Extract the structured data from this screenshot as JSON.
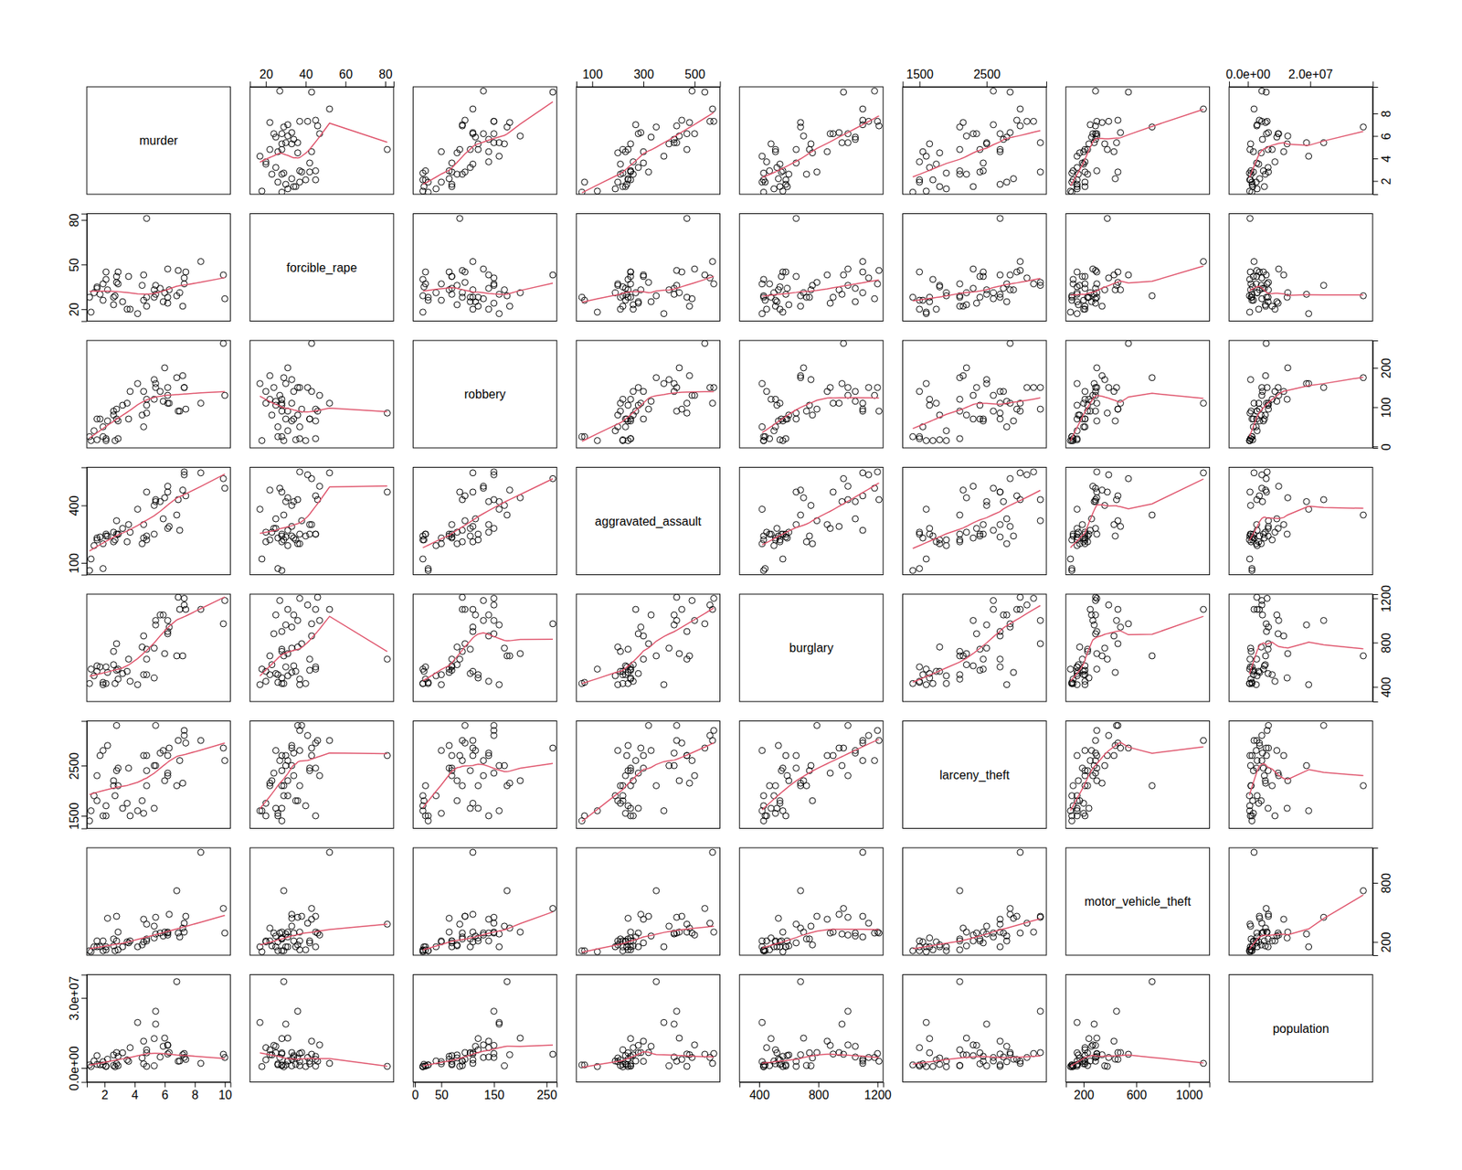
{
  "chart_data": {
    "type": "scatter_matrix",
    "marker": "circle",
    "color": "#DF536B",
    "variables": [
      {
        "name": "murder",
        "values": [
          5.7,
          4.8,
          6.3,
          6.9,
          6.8,
          2.9,
          3.5,
          5.3,
          5.4,
          6.2,
          1.7,
          1.5,
          6.0,
          4.8,
          1.3,
          3.6,
          4.5,
          10.0,
          1.9,
          7.2,
          3.2,
          6.2,
          1.5,
          7.0,
          6.2,
          2.9,
          2.8,
          9.9,
          1.0,
          3.7,
          8.4,
          4.2,
          5.9,
          2.1,
          4.6,
          7.4,
          2.2,
          5.3,
          2.6,
          7.3,
          2.1,
          7.3,
          5.4,
          1.9,
          1.1,
          4.8,
          2.8,
          4.6,
          2.6,
          2.7
        ],
        "xlim": [
          0.82,
          10.37
        ],
        "ylim": [
          0.82,
          10.37
        ],
        "xticks": [
          2,
          4,
          6,
          8,
          10
        ],
        "yticks": [
          2,
          4,
          6,
          8
        ]
      },
      {
        "name": "forcible_rape",
        "values": [
          34,
          81,
          33,
          46,
          29,
          45,
          20,
          33,
          30,
          24,
          30,
          35,
          31,
          28,
          31,
          42,
          36,
          27,
          26,
          22,
          25,
          47,
          34,
          31,
          28,
          37,
          42,
          43,
          28,
          20,
          52,
          17,
          25,
          40,
          43,
          45,
          33,
          28,
          28,
          41,
          45,
          37,
          36,
          37,
          18,
          22,
          38,
          26,
          23,
          29
        ],
        "xlim": [
          12,
          84.2
        ],
        "ylim": [
          12,
          84.2
        ],
        "xticks": [
          20,
          40,
          60,
          80
        ],
        "yticks": [
          20,
          50,
          80
        ]
      },
      {
        "name": "robbery",
        "values": [
          140,
          85,
          110,
          90,
          175,
          65,
          110,
          170,
          160,
          150,
          70,
          17,
          200,
          105,
          40,
          70,
          80,
          130,
          25,
          180,
          105,
          130,
          70,
          90,
          110,
          20,
          70,
          262,
          25,
          140,
          110,
          160,
          115,
          15,
          140,
          95,
          65,
          120,
          90,
          150,
          20,
          150,
          150,
          50,
          15,
          120,
          95,
          50,
          80,
          15
        ],
        "xlim": [
          -3.5,
          269.5
        ],
        "ylim": [
          -3.5,
          269.5
        ],
        "xticks": [
          0,
          50,
          150,
          250
        ],
        "yticks": [
          0,
          100,
          200
        ]
      },
      {
        "name": "aggravated_assault",
        "values": [
          420,
          470,
          290,
          430,
          350,
          250,
          210,
          400,
          420,
          280,
          235,
          220,
          440,
          240,
          190,
          300,
          200,
          490,
          70,
          480,
          280,
          500,
          230,
          270,
          470,
          250,
          250,
          540,
          60,
          260,
          570,
          380,
          330,
          240,
          300,
          450,
          240,
          250,
          210,
          560,
          250,
          575,
          430,
          200,
          120,
          220,
          320,
          230,
          260,
          220
        ],
        "xlim": [
          38,
          599
        ],
        "ylim": [
          38,
          599
        ],
        "xticks": [
          100,
          300,
          500
        ],
        "yticks": [
          100,
          400
        ]
      },
      {
        "name": "burglary",
        "values": [
          1050,
          650,
          940,
          1210,
          680,
          560,
          540,
          750,
          960,
          880,
          580,
          540,
          700,
          740,
          500,
          650,
          760,
          1180,
          440,
          680,
          520,
          1000,
          590,
          1100,
          900,
          470,
          550,
          970,
          430,
          450,
          1100,
          420,
          1050,
          430,
          860,
          1100,
          530,
          480,
          720,
          1140,
          580,
          1200,
          1000,
          420,
          560,
          510,
          790,
          510,
          600,
          430
        ],
        "xlim": [
          267,
          1238
        ],
        "ylim": [
          267,
          1238
        ],
        "xticks": [
          400,
          800,
          1200
        ],
        "yticks": [
          400,
          800,
          1200
        ]
      },
      {
        "name": "larceny_theft",
        "values": [
          2750,
          2700,
          2850,
          3000,
          2100,
          2450,
          1750,
          2500,
          2500,
          2350,
          2700,
          1800,
          2200,
          2400,
          1900,
          2450,
          1800,
          2600,
          1500,
          2150,
          1650,
          2300,
          2300,
          2600,
          2700,
          2100,
          2400,
          2850,
          1400,
          1500,
          3000,
          1600,
          2800,
          1700,
          2700,
          2950,
          2900,
          1650,
          2100,
          3100,
          1500,
          3200,
          3300,
          2800,
          1600,
          2100,
          3300,
          1550,
          2200,
          1900
        ],
        "xlim": [
          1250,
          3389
        ],
        "ylim": [
          1250,
          3389
        ],
        "xticks": [
          1500,
          2500
        ],
        "yticks": [
          1500,
          2500
        ]
      },
      {
        "name": "motor_vehicle_theft",
        "values": [
          290,
          380,
          480,
          290,
          720,
          300,
          200,
          360,
          280,
          290,
          150,
          150,
          300,
          230,
          150,
          190,
          170,
          290,
          110,
          340,
          150,
          270,
          210,
          250,
          300,
          120,
          210,
          540,
          110,
          210,
          1110,
          150,
          260,
          120,
          430,
          460,
          440,
          240,
          230,
          390,
          150,
          300,
          450,
          210,
          100,
          210,
          460,
          200,
          160,
          110
        ],
        "xlim": [
          65,
          1156
        ],
        "ylim": [
          65,
          1156
        ],
        "xticks": [
          200,
          600,
          1000
        ],
        "yticks": [
          200,
          800
        ]
      },
      {
        "name": "population",
        "values": [
          4700000,
          700000,
          6600000,
          2900000,
          37000000,
          5000000,
          3500000,
          900000,
          18800000,
          9700000,
          1360000,
          1570000,
          12800000,
          6500000,
          3000000,
          2850000,
          4300000,
          4500000,
          1330000,
          5700000,
          6500000,
          9900000,
          5300000,
          3000000,
          6000000,
          990000,
          1800000,
          5900000,
          1320000,
          8700000,
          2000000,
          19500000,
          9300000,
          640000,
          11500000,
          3700000,
          3800000,
          12600000,
          1050000,
          4500000,
          810000,
          6200000,
          24300000,
          2700000,
          620000,
          7800000,
          6600000,
          1800000,
          5600000,
          530000
        ],
        "xlim": [
          -6000000,
          40000000
        ],
        "ylim": [
          -6000000,
          40000000
        ],
        "xticks": [
          {
            "value": 0,
            "label": "0.0e+00"
          },
          {
            "value": 20000000,
            "label": "2.0e+07"
          }
        ],
        "yticks": [
          {
            "value": 0,
            "label": "0.0e+00"
          },
          {
            "value": 30000000,
            "label": "3.0e+07"
          }
        ]
      }
    ]
  }
}
